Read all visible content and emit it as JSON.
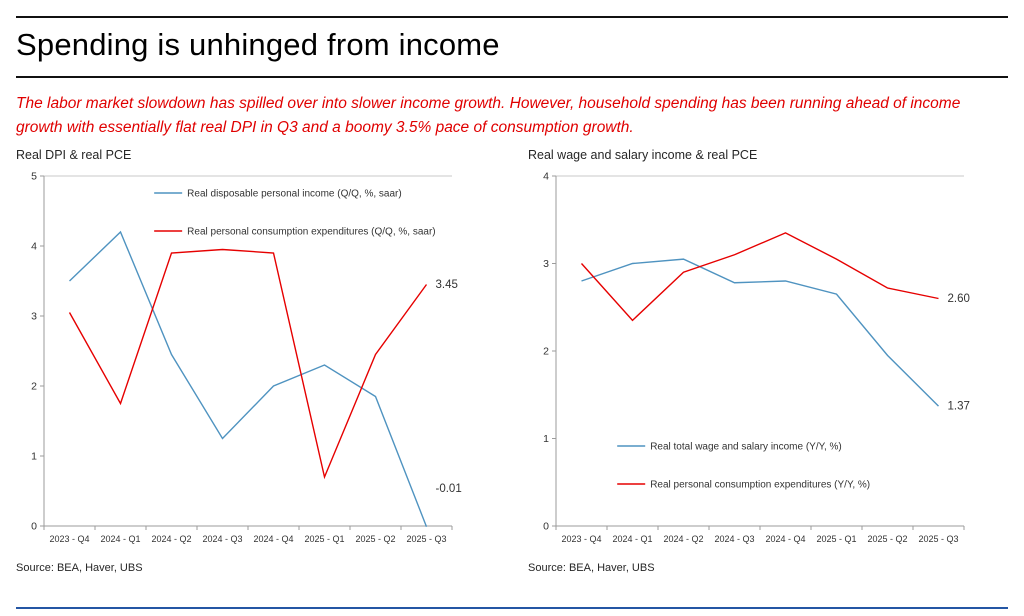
{
  "page": {
    "title": "Spending is unhinged from income",
    "subtitle": "The labor market slowdown has spilled over into slower income growth. However, household spending has been running ahead of income growth with essentially flat real DPI in Q3 and a boomy 3.5% pace of consumption growth.",
    "colors": {
      "accent_red": "#e00000",
      "line_blue": "#4f93c0",
      "line_red": "#e60000",
      "footer_blue": "#2456a4"
    }
  },
  "chart_data": [
    {
      "type": "line",
      "title": "Real DPI & real PCE",
      "source": "Source: BEA, Haver, UBS",
      "categories": [
        "2023 - Q4",
        "2024 - Q1",
        "2024 - Q2",
        "2024 - Q3",
        "2024 - Q4",
        "2025 - Q1",
        "2025 - Q2",
        "2025 - Q3"
      ],
      "ylim": [
        0,
        5
      ],
      "yticks": [
        0,
        1,
        2,
        3,
        4,
        5
      ],
      "grid": false,
      "legend_position": "top-inside",
      "series": [
        {
          "name": "Real disposable personal income (Q/Q, %, saar)",
          "color": "#4f93c0",
          "values": [
            3.5,
            4.2,
            2.45,
            1.25,
            2.0,
            2.3,
            1.85,
            -0.01
          ],
          "end_label": "-0.01",
          "end_label_dy": -38
        },
        {
          "name": "Real personal consumption expenditures (Q/Q, %, saar)",
          "color": "#e60000",
          "values": [
            3.05,
            1.75,
            3.9,
            3.95,
            3.9,
            0.7,
            2.45,
            3.45
          ],
          "end_label": "3.45",
          "end_label_dy": 0
        }
      ]
    },
    {
      "type": "line",
      "title": "Real wage and salary income & real PCE",
      "source": "Source: BEA, Haver, UBS",
      "categories": [
        "2023 - Q4",
        "2024 - Q1",
        "2024 - Q2",
        "2024 - Q3",
        "2024 - Q4",
        "2025 - Q1",
        "2025 - Q2",
        "2025 - Q3"
      ],
      "ylim": [
        0,
        4
      ],
      "yticks": [
        0,
        1,
        2,
        3,
        4
      ],
      "grid": false,
      "legend_position": "bottom-inside",
      "series": [
        {
          "name": "Real total wage and salary income (Y/Y, %)",
          "color": "#4f93c0",
          "values": [
            2.8,
            3.0,
            3.05,
            2.78,
            2.8,
            2.65,
            1.95,
            1.37
          ],
          "end_label": "1.37",
          "end_label_dy": 0
        },
        {
          "name": "Real personal consumption expenditures (Y/Y, %)",
          "color": "#e60000",
          "values": [
            3.0,
            2.35,
            2.9,
            3.1,
            3.35,
            3.05,
            2.72,
            2.6
          ],
          "end_label": "2.60",
          "end_label_dy": 0
        }
      ]
    }
  ]
}
